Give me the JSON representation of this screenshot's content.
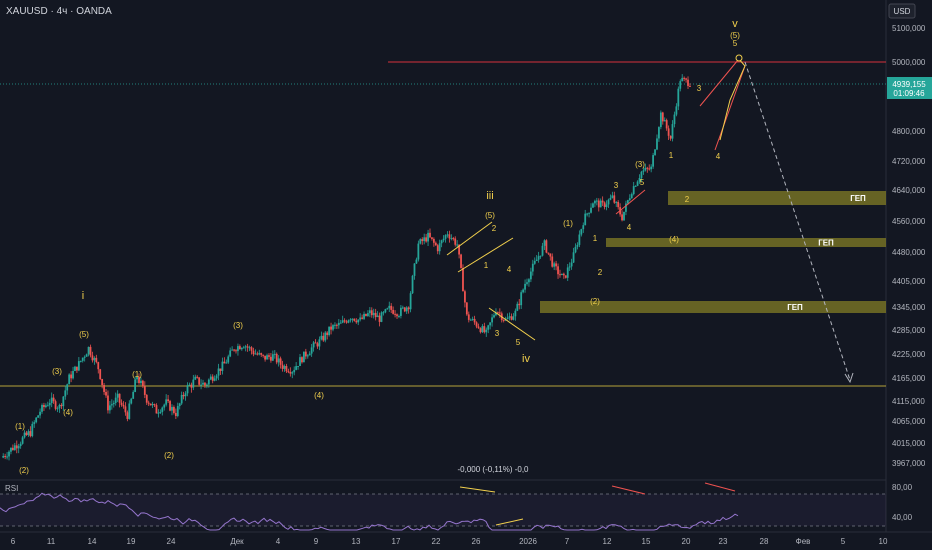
{
  "header": {
    "symbol": "XAUUSD",
    "timeframe": "4ч",
    "broker": "OANDA",
    "currency": "USD"
  },
  "price_axis": {
    "ticks": [
      "5100,000",
      "5000,000",
      "4939,155",
      "4800,000",
      "4720,000",
      "4640,000",
      "4560,000",
      "4480,000",
      "4405,000",
      "4345,000",
      "4285,000",
      "4225,000",
      "4165,000",
      "4115,000",
      "4065,000",
      "4015,000",
      "3967,000"
    ],
    "current_price": "4939,155",
    "countdown": "01:09:46"
  },
  "time_axis": {
    "ticks": [
      "6",
      "11",
      "14",
      "19",
      "24",
      "Дек",
      "4",
      "9",
      "13",
      "17",
      "22",
      "26",
      "2026",
      "7",
      "12",
      "15",
      "20",
      "23",
      "28",
      "Фев",
      "5",
      "10"
    ]
  },
  "chart_data": {
    "type": "candlestick",
    "symbol": "XAUUSD",
    "price_range": [
      3940,
      5140
    ],
    "close_path": [
      [
        6,
        3980
      ],
      [
        7,
        4000
      ],
      [
        8,
        4020
      ],
      [
        9,
        4040
      ],
      [
        10,
        4090
      ],
      [
        11,
        4115
      ],
      [
        12,
        4100
      ],
      [
        13,
        4165
      ],
      [
        14,
        4200
      ],
      [
        15,
        4240
      ],
      [
        16,
        4190
      ],
      [
        17,
        4100
      ],
      [
        18,
        4120
      ],
      [
        19,
        4080
      ],
      [
        20,
        4170
      ],
      [
        21,
        4120
      ],
      [
        22,
        4090
      ],
      [
        23,
        4110
      ],
      [
        24,
        4085
      ],
      [
        25,
        4140
      ],
      [
        26,
        4160
      ],
      [
        27,
        4150
      ],
      [
        28,
        4175
      ],
      [
        29,
        4200
      ],
      [
        30,
        4240
      ],
      [
        31,
        4250
      ],
      [
        32,
        4230
      ],
      [
        33,
        4215
      ],
      [
        34,
        4220
      ],
      [
        35,
        4195
      ],
      [
        36,
        4185
      ],
      [
        37,
        4215
      ],
      [
        38,
        4240
      ],
      [
        39,
        4260
      ],
      [
        40,
        4290
      ],
      [
        41,
        4300
      ],
      [
        42,
        4320
      ],
      [
        43,
        4310
      ],
      [
        44,
        4330
      ],
      [
        45,
        4315
      ],
      [
        46,
        4340
      ],
      [
        47,
        4330
      ],
      [
        48,
        4350
      ],
      [
        49,
        4500
      ],
      [
        50,
        4520
      ],
      [
        51,
        4490
      ],
      [
        52,
        4530
      ],
      [
        53,
        4500
      ],
      [
        54,
        4320
      ],
      [
        55,
        4300
      ],
      [
        56,
        4275
      ],
      [
        57,
        4340
      ],
      [
        58,
        4310
      ],
      [
        59,
        4330
      ],
      [
        60,
        4400
      ],
      [
        61,
        4450
      ],
      [
        62,
        4500
      ],
      [
        63,
        4440
      ],
      [
        64,
        4410
      ],
      [
        65,
        4470
      ],
      [
        66,
        4560
      ],
      [
        67,
        4610
      ],
      [
        68,
        4600
      ],
      [
        69,
        4620
      ],
      [
        70,
        4570
      ],
      [
        71,
        4640
      ],
      [
        72,
        4690
      ],
      [
        73,
        4700
      ],
      [
        74,
        4850
      ],
      [
        75,
        4780
      ],
      [
        76,
        4950
      ],
      [
        77,
        4939
      ]
    ],
    "horizontal_lines": [
      {
        "price": 5000,
        "color": "#d6303c"
      },
      {
        "price": 4939.155,
        "color": "#26a69a",
        "style": "dotted"
      },
      {
        "price": 4150,
        "color": "#b5a339"
      }
    ],
    "gap_zones": [
      {
        "label": "ГЕП",
        "from": 4604,
        "to": 4632
      },
      {
        "label": "ГЕП",
        "from": 4496,
        "to": 4512
      },
      {
        "label": "ГЕП",
        "from": 4328,
        "to": 4350
      }
    ],
    "wave_labels": [
      "i",
      "iii",
      "iv",
      "v",
      "(1)",
      "(2)",
      "(3)",
      "(4)",
      "(5)",
      "1",
      "2",
      "3",
      "4",
      "5"
    ],
    "rsi": {
      "label": "RSI",
      "ticks": [
        "80,00",
        "40,00"
      ],
      "annotation": "-0,000 (-0,11%) -0,0",
      "levels": [
        70,
        30
      ]
    }
  },
  "colors": {
    "bg": "#131722",
    "up": "#26a69a",
    "down": "#ef5350",
    "resistance": "#d6303c",
    "support": "#b5a339",
    "gap": "#767124",
    "wave": "#f2d04d",
    "rsi": "#7e57c2"
  }
}
